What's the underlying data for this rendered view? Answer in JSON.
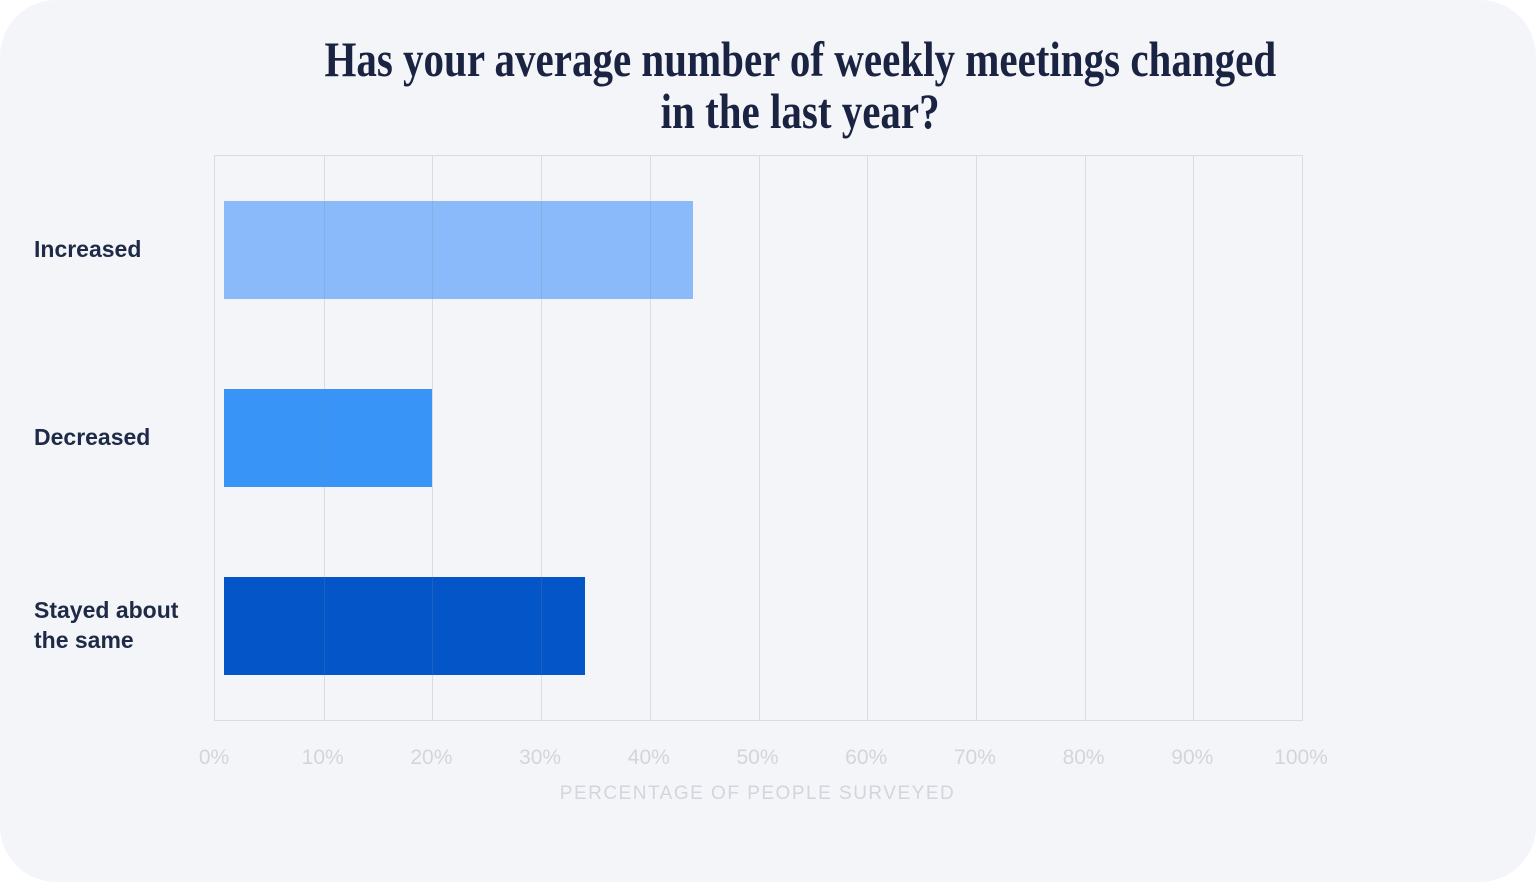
{
  "title_lines": [
    "Has your average number of weekly meetings changed",
    "in the last year?"
  ],
  "chart_data": {
    "type": "bar",
    "orientation": "horizontal",
    "title": "Has your average number of weekly meetings changed in the last year?",
    "categories": [
      "Increased",
      "Decreased",
      "Stayed about the same"
    ],
    "values": [
      44,
      20,
      34
    ],
    "bar_colors": [
      "#8abaf9",
      "#3994f7",
      "#0355c8"
    ],
    "xlabel": "PERCENTAGE OF PEOPLE SURVEYED",
    "ylabel": "",
    "x_ticks": [
      "0%",
      "10%",
      "20%",
      "30%",
      "40%",
      "50%",
      "60%",
      "70%",
      "80%",
      "90%",
      "100%"
    ],
    "xlim": [
      0,
      100
    ],
    "grid": true,
    "legend": false
  },
  "colors": {
    "card_background": "#f3f5f8",
    "page_background": "#ffffff",
    "title_text": "#1b2342",
    "category_text": "#1e2a47",
    "axis_text": "#d2d6dc",
    "plot_border": "#d9dce1"
  }
}
